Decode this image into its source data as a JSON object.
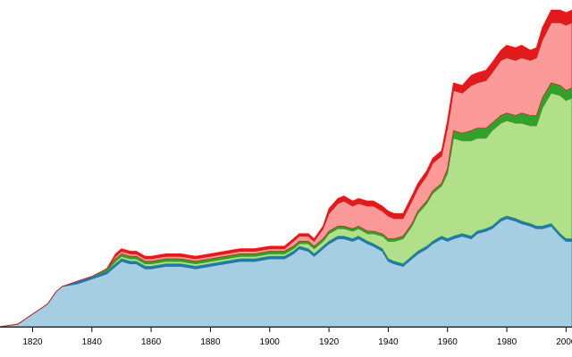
{
  "chart_data": {
    "type": "area",
    "stacked": true,
    "grid": false,
    "legend": "none",
    "title": "",
    "xlabel": "",
    "ylabel": "",
    "xlim": [
      1809,
      2002
    ],
    "ylim": [
      0,
      130
    ],
    "x_ticks": [
      {
        "value": 1820,
        "label": "1820"
      },
      {
        "value": 1840,
        "label": "1840"
      },
      {
        "value": 1860,
        "label": "1860"
      },
      {
        "value": 1880,
        "label": "1880"
      },
      {
        "value": 1900,
        "label": "1900"
      },
      {
        "value": 1920,
        "label": "1920"
      },
      {
        "value": 1940,
        "label": "1940"
      },
      {
        "value": 1960,
        "label": "1960"
      },
      {
        "value": 1980,
        "label": "1980"
      },
      {
        "value": 2000,
        "label": "2000"
      }
    ],
    "x": [
      1809,
      1815,
      1820,
      1825,
      1828,
      1830,
      1835,
      1840,
      1845,
      1848,
      1850,
      1853,
      1855,
      1858,
      1860,
      1865,
      1870,
      1875,
      1880,
      1885,
      1890,
      1895,
      1900,
      1905,
      1908,
      1910,
      1913,
      1915,
      1918,
      1920,
      1923,
      1925,
      1928,
      1930,
      1933,
      1935,
      1938,
      1940,
      1942,
      1945,
      1948,
      1950,
      1953,
      1955,
      1958,
      1960,
      1962,
      1965,
      1968,
      1970,
      1973,
      1975,
      1978,
      1980,
      1983,
      1985,
      1988,
      1990,
      1992,
      1995,
      1998,
      2000,
      2002
    ],
    "series": [
      {
        "color_fill": "#a6cee3",
        "color_edge": "#1f78b4",
        "values": [
          0,
          1,
          5,
          9,
          14,
          16,
          17,
          19,
          21,
          24,
          26,
          25,
          25,
          23,
          23,
          24,
          24,
          23,
          24,
          25,
          26,
          26,
          27,
          27,
          29,
          31,
          30,
          28,
          31,
          33,
          35,
          35,
          34,
          35,
          33,
          32,
          30,
          26,
          25,
          24,
          27,
          29,
          31,
          33,
          35,
          34,
          35,
          36,
          35,
          37,
          38,
          39,
          42,
          43,
          42,
          41,
          40,
          39,
          39,
          40,
          36,
          34,
          34
        ]
      },
      {
        "color_fill": "#1f78b4",
        "color_edge": "#1f78b4",
        "values": [
          0,
          0,
          0,
          0,
          0,
          0,
          1,
          1,
          1,
          1,
          1,
          1,
          1,
          1,
          1,
          1,
          1,
          1,
          1,
          1,
          1,
          1,
          1,
          1,
          1,
          1,
          1,
          1,
          1,
          1,
          1,
          1,
          1,
          1,
          1,
          1,
          1,
          1,
          1,
          1,
          1,
          1,
          1,
          1,
          1,
          1,
          1,
          1,
          1,
          1,
          1,
          1,
          1,
          1,
          1,
          1,
          1,
          1,
          1,
          1,
          1,
          1,
          1
        ]
      },
      {
        "color_fill": "#b2df8a",
        "color_edge": "#33a02c",
        "values": [
          0,
          0,
          0,
          0,
          0,
          0,
          0,
          0,
          0,
          1,
          1,
          1,
          1,
          1,
          1,
          1,
          1,
          1,
          1,
          1,
          1,
          1,
          1,
          1,
          1,
          1,
          2,
          2,
          2,
          3,
          3,
          3,
          3,
          3,
          3,
          4,
          5,
          7,
          8,
          10,
          12,
          15,
          17,
          19,
          20,
          26,
          39,
          37,
          38,
          37,
          36,
          38,
          38,
          38,
          38,
          39,
          39,
          40,
          47,
          52,
          55,
          55,
          56
        ]
      },
      {
        "color_fill": "#33a02c",
        "color_edge": "#33a02c",
        "values": [
          0,
          0,
          0,
          0,
          0,
          0,
          0,
          0,
          1,
          1,
          1,
          1,
          1,
          1,
          1,
          1,
          1,
          1,
          1,
          1,
          1,
          1,
          1,
          1,
          1,
          1,
          1,
          1,
          1,
          1,
          1,
          1,
          1,
          1,
          1,
          1,
          1,
          1,
          1,
          1,
          1,
          1,
          1,
          1,
          1,
          2,
          3,
          3,
          4,
          4,
          4,
          3,
          3,
          3,
          3,
          4,
          4,
          4,
          4,
          4,
          4,
          4,
          4
        ]
      },
      {
        "color_fill": "#fb9a99",
        "color_edge": "#e31a1c",
        "values": [
          0,
          0,
          0,
          0,
          0,
          0,
          0,
          0,
          0,
          1,
          1,
          1,
          1,
          1,
          1,
          1,
          1,
          1,
          1,
          1,
          1,
          1,
          1,
          1,
          2,
          2,
          2,
          2,
          4,
          7,
          9,
          10,
          9,
          9,
          10,
          10,
          9,
          9,
          8,
          7,
          9,
          9,
          10,
          11,
          11,
          16,
          16,
          16,
          18,
          18,
          19,
          20,
          22,
          22,
          22,
          22,
          22,
          23,
          23,
          24,
          25,
          26,
          26
        ]
      },
      {
        "color_fill": "#e31a1c",
        "color_edge": "#e31a1c",
        "values": [
          0,
          0,
          0,
          0,
          0,
          0,
          0,
          0,
          0,
          1,
          1,
          1,
          1,
          1,
          1,
          1,
          1,
          1,
          1,
          1,
          1,
          1,
          1,
          1,
          1,
          1,
          1,
          1,
          1,
          2,
          2,
          2,
          2,
          2,
          2,
          2,
          2,
          2,
          2,
          2,
          2,
          2,
          2,
          2,
          2,
          3,
          3,
          3,
          4,
          4,
          4,
          4,
          4,
          5,
          5,
          5,
          4,
          4,
          5,
          5,
          5,
          5,
          5
        ]
      }
    ]
  }
}
